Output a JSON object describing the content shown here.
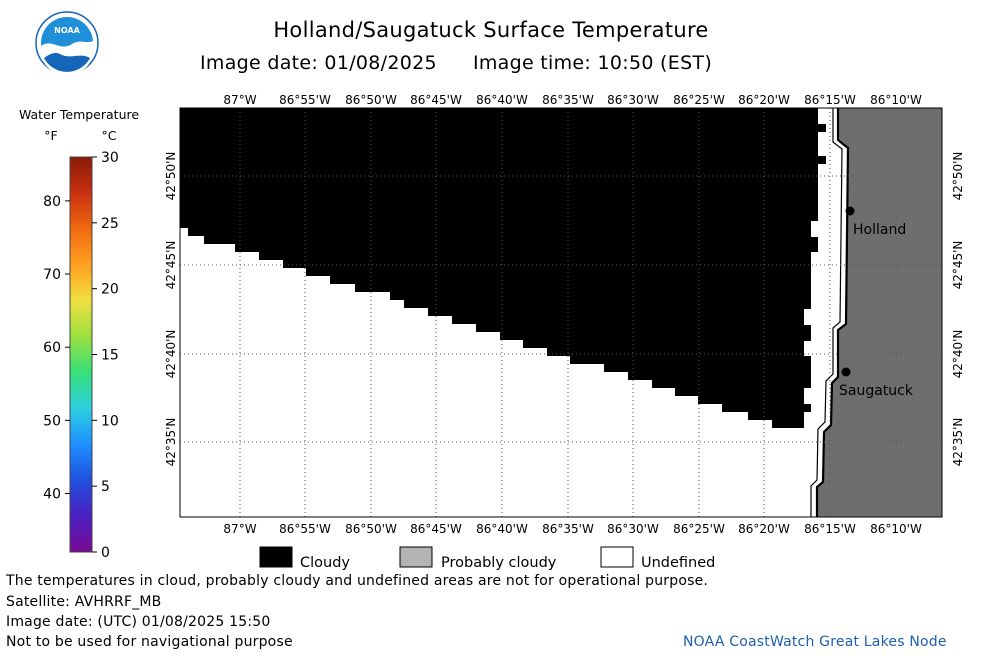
{
  "header": {
    "title": "Holland/Saugatuck Surface Temperature",
    "image_date": "Image date: 01/08/2025",
    "image_time": "Image time: 10:50 (EST)"
  },
  "logo": {
    "text": "NOAA",
    "colors": {
      "ring": "#ffffff",
      "sky": "#1e8fd8",
      "wave": "#ffffff",
      "bird": "#1565b8"
    }
  },
  "colorbar": {
    "title": "Water Temperature",
    "unit_f": "°F",
    "unit_c": "°C",
    "f_ticks": [
      "80",
      "70",
      "60",
      "50",
      "40"
    ],
    "c_ticks": [
      "30",
      "25",
      "20",
      "15",
      "10",
      "5",
      "0"
    ],
    "colormap": [
      "#7a0a94",
      "#4a1fc0",
      "#2050e0",
      "#1e90ff",
      "#2ed0e0",
      "#36e07a",
      "#9be040",
      "#f0e040",
      "#ffa020",
      "#f06a10",
      "#c83010",
      "#8a1a08"
    ]
  },
  "map": {
    "lon_labels": [
      "87°W",
      "86°55'W",
      "86°50'W",
      "86°45'W",
      "86°40'W",
      "86°35'W",
      "86°30'W",
      "86°25'W",
      "86°20'W",
      "86°15'W",
      "86°10'W"
    ],
    "lat_labels": [
      "42°50'N",
      "42°45'N",
      "42°40'N",
      "42°35'N"
    ],
    "places": [
      "Holland",
      "Saugatuck"
    ],
    "colors": {
      "cloudy": "#000000",
      "undefined": "#ffffff",
      "land": "#6e6e6e",
      "grid": "#555555",
      "coast": "#000000"
    }
  },
  "legend": [
    {
      "label": "Cloudy",
      "color": "#000000"
    },
    {
      "label": "Probably cloudy",
      "color": "#b4b4b4"
    },
    {
      "label": "Undefined",
      "color": "#ffffff"
    }
  ],
  "footer": {
    "disclaimer": "The temperatures in cloud, probably cloudy and undefined areas are not for operational purpose.",
    "satellite": "Satellite: AVHRRF_MB",
    "utc_date": "Image date: (UTC) 01/08/2025  15:50",
    "nav_warning": "Not to be used for navigational purpose",
    "credit": "NOAA CoastWatch Great Lakes Node"
  }
}
